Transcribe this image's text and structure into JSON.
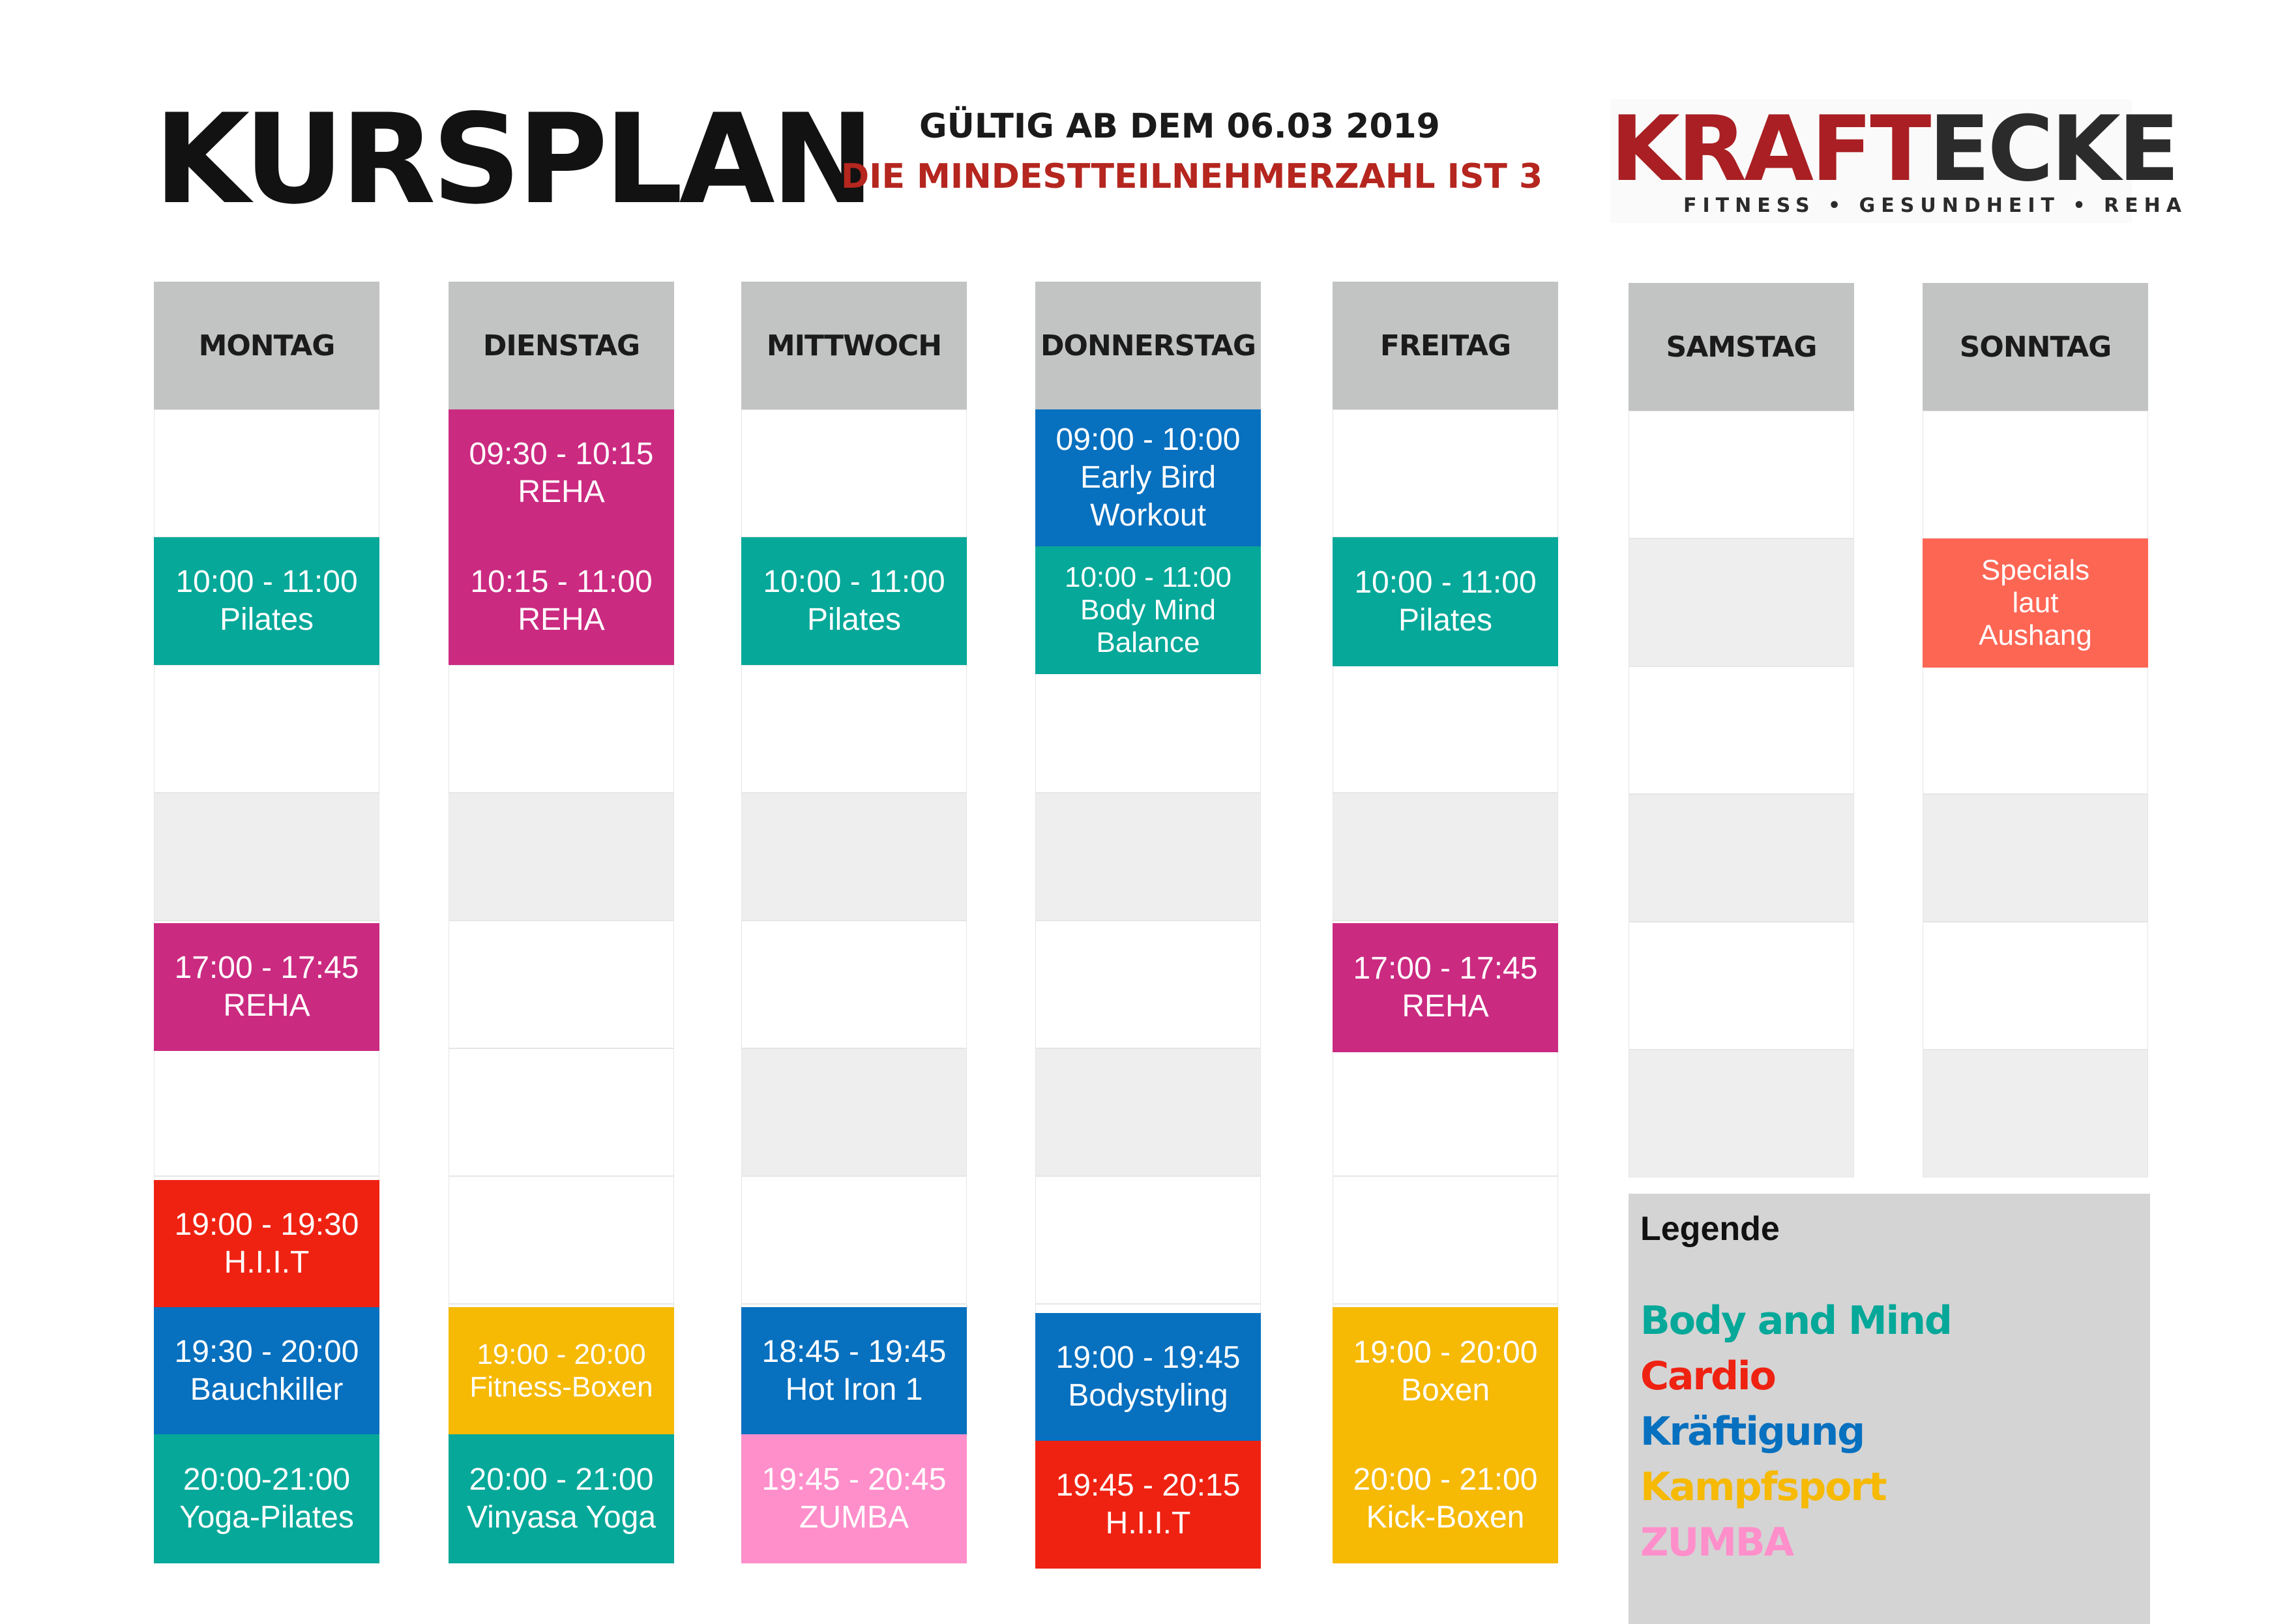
{
  "header": {
    "title": "KURSPLAN",
    "valid_from": "GÜLTIG AB DEM 06.03 2019",
    "minimum_participants": "DIE MINDESTTEILNEHMERZAHL IST 3"
  },
  "logo": {
    "word_part1": "KRAFT",
    "word_part2": "ECKE",
    "tagline": "FITNESS • GESUNDHEIT • REHA"
  },
  "colors": {
    "body_and_mind": "#05a899",
    "cardio": "#ef2212",
    "kraeftigung": "#0770bf",
    "kampfsport": "#f6b904",
    "zumba": "#ff8fcb",
    "reha": "#cb2a81",
    "specials": "#fe6654",
    "header_gray": "#c2c3c3"
  },
  "days": [
    {
      "name": "MONTAG",
      "events": [
        {
          "lines": [
            "10:00 - 11:00",
            "Pilates"
          ],
          "category": "body_and_mind"
        },
        {
          "lines": [
            "17:00 - 17:45",
            "REHA"
          ],
          "category": "reha"
        },
        {
          "lines": [
            "19:00 - 19:30",
            "H.I.I.T"
          ],
          "category": "cardio"
        },
        {
          "lines": [
            "19:30 - 20:00",
            "Bauchkiller"
          ],
          "category": "kraeftigung"
        },
        {
          "lines": [
            "20:00-21:00",
            "Yoga-Pilates"
          ],
          "category": "body_and_mind"
        }
      ]
    },
    {
      "name": "DIENSTAG",
      "events": [
        {
          "lines": [
            "09:30 - 10:15",
            "REHA"
          ],
          "category": "reha"
        },
        {
          "lines": [
            "10:15 - 11:00",
            "REHA"
          ],
          "category": "reha"
        },
        {
          "lines": [
            "19:00 - 20:00",
            "Fitness-Boxen"
          ],
          "category": "kampfsport"
        },
        {
          "lines": [
            "20:00 - 21:00",
            "Vinyasa Yoga"
          ],
          "category": "body_and_mind"
        }
      ]
    },
    {
      "name": "MITTWOCH",
      "events": [
        {
          "lines": [
            "10:00 - 11:00",
            "Pilates"
          ],
          "category": "body_and_mind"
        },
        {
          "lines": [
            "18:45 - 19:45",
            "Hot Iron 1"
          ],
          "category": "kraeftigung"
        },
        {
          "lines": [
            "19:45 - 20:45",
            "ZUMBA"
          ],
          "category": "zumba"
        }
      ]
    },
    {
      "name": "DONNERSTAG",
      "events": [
        {
          "lines": [
            "09:00 - 10:00",
            "Early Bird",
            "Workout"
          ],
          "category": "kraeftigung"
        },
        {
          "lines": [
            "10:00 - 11:00",
            "Body Mind",
            "Balance"
          ],
          "category": "body_and_mind"
        },
        {
          "lines": [
            "19:00 - 19:45",
            "Bodystyling"
          ],
          "category": "kraeftigung"
        },
        {
          "lines": [
            "19:45 - 20:15",
            "H.I.I.T"
          ],
          "category": "cardio"
        }
      ]
    },
    {
      "name": "FREITAG",
      "events": [
        {
          "lines": [
            "10:00 - 11:00",
            "Pilates"
          ],
          "category": "body_and_mind"
        },
        {
          "lines": [
            "17:00 - 17:45",
            "REHA"
          ],
          "category": "reha"
        },
        {
          "lines": [
            "19:00 - 20:00",
            "Boxen"
          ],
          "category": "kampfsport"
        },
        {
          "lines": [
            "20:00 - 21:00",
            "Kick-Boxen"
          ],
          "category": "kampfsport"
        }
      ]
    },
    {
      "name": "SAMSTAG",
      "events": []
    },
    {
      "name": "SONNTAG",
      "events": [
        {
          "lines": [
            "Specials",
            "laut",
            "Aushang"
          ],
          "category": "specials"
        }
      ]
    }
  ],
  "legend": {
    "title": "Legende",
    "items": [
      {
        "label": "Body and Mind",
        "category": "body_and_mind"
      },
      {
        "label": "Cardio",
        "category": "cardio"
      },
      {
        "label": "Kräftigung",
        "category": "kraeftigung"
      },
      {
        "label": "Kampfsport",
        "category": "kampfsport"
      },
      {
        "label": "ZUMBA",
        "category": "zumba"
      }
    ]
  }
}
